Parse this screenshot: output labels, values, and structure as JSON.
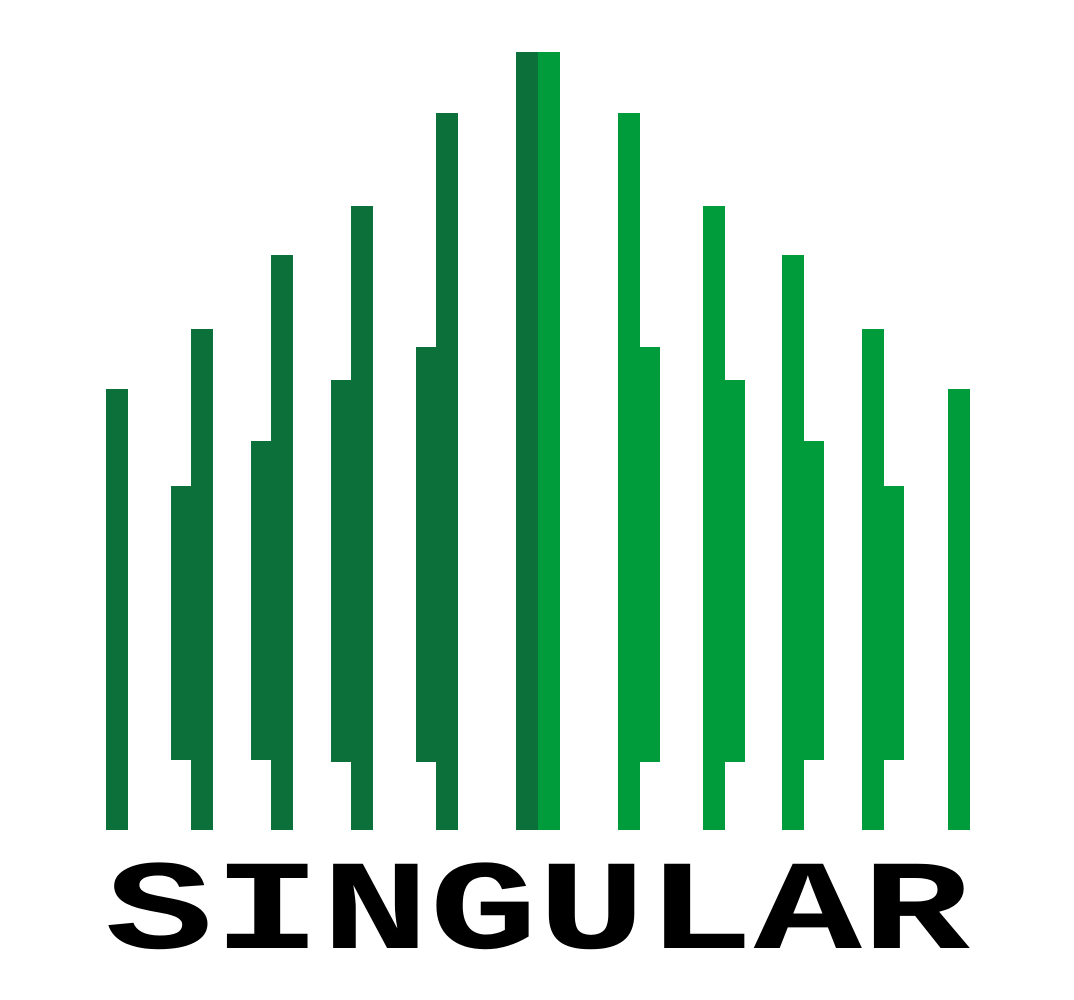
{
  "logo": {
    "text": "SINGULAR"
  }
}
